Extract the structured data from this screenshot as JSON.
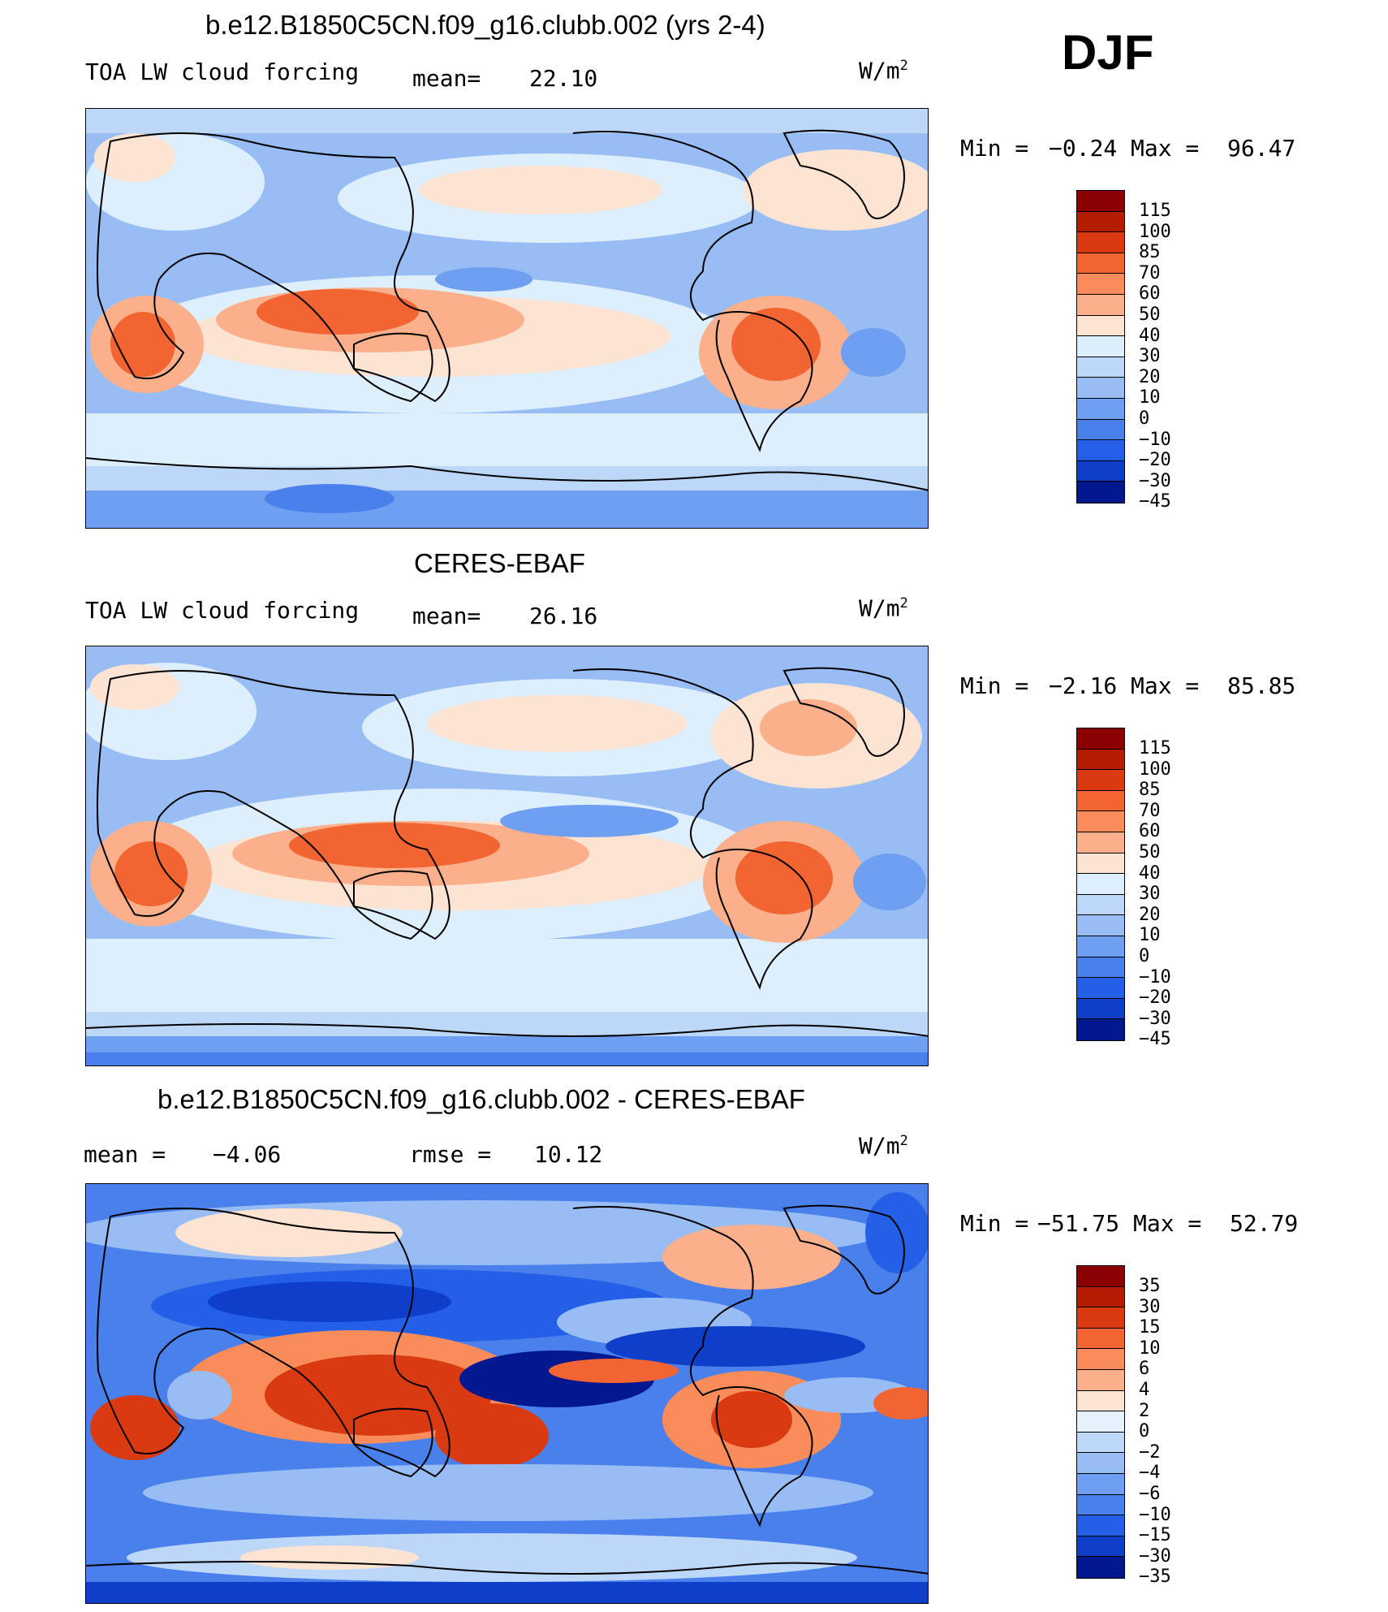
{
  "season": "DJF",
  "colors": {
    "land_line": "#000000",
    "ramp_10": [
      "#8b0000",
      "#b31c00",
      "#d93a12",
      "#f26432",
      "#f98c5a",
      "#fbb08b",
      "#fde3d1",
      "#ddeefc",
      "#bcd7f8",
      "#98bdf4",
      "#6f9ff0",
      "#4a80ec",
      "#245fe8",
      "#0f3fc8",
      "#03178f"
    ],
    "ramp_diff": [
      "#8b0000",
      "#b31c00",
      "#d93a12",
      "#f26432",
      "#f98c5a",
      "#fbb08b",
      "#fde3d1",
      "#e5f1fd",
      "#bcd7f8",
      "#98bdf4",
      "#6f9ff0",
      "#4a80ec",
      "#245fe8",
      "#0f3fc8",
      "#03178f"
    ]
  },
  "panel1": {
    "title": "b.e12.B1850C5CN.f09_g16.clubb.002 (yrs 2-4)",
    "field": "TOA LW cloud forcing",
    "mean_label": "mean=",
    "mean_value": "22.10",
    "units": "W/m",
    "units_sup": "2",
    "min_label": "Min =",
    "min_value": "−0.24",
    "max_label": "Max =",
    "max_value": "96.47",
    "levels": [
      "115",
      "100",
      "85",
      "70",
      "60",
      "50",
      "40",
      "30",
      "20",
      "10",
      "0",
      "−10",
      "−20",
      "−30",
      "−45"
    ]
  },
  "panel2": {
    "title": "CERES-EBAF",
    "field": "TOA LW cloud forcing",
    "mean_label": "mean=",
    "mean_value": "26.16",
    "units": "W/m",
    "units_sup": "2",
    "min_label": "Min =",
    "min_value": "−2.16",
    "max_label": "Max =",
    "max_value": "85.85",
    "levels": [
      "115",
      "100",
      "85",
      "70",
      "60",
      "50",
      "40",
      "30",
      "20",
      "10",
      "0",
      "−10",
      "−20",
      "−30",
      "−45"
    ]
  },
  "panel3": {
    "title": "b.e12.B1850C5CN.f09_g16.clubb.002 - CERES-EBAF",
    "mean_label": "mean =",
    "mean_value": "−4.06",
    "rmse_label": "rmse =",
    "rmse_value": "10.12",
    "units": "W/m",
    "units_sup": "2",
    "min_label": "Min =",
    "min_value": "−51.75",
    "max_label": "Max =",
    "max_value": "52.79",
    "levels": [
      "35",
      "30",
      "15",
      "10",
      "6",
      "4",
      "2",
      "0",
      "−2",
      "−4",
      "−6",
      "−10",
      "−15",
      "−30",
      "−35"
    ]
  }
}
